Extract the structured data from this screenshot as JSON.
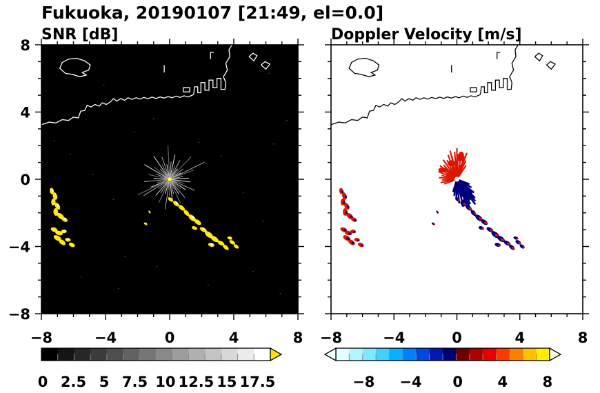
{
  "title": "Fukuoka, 20190107 [21:49, el=0.0]",
  "colors": {
    "echo_yellow": "#ffe818",
    "vel_red": "#dd1500",
    "vel_navy": "#00007d",
    "frame": "#000000"
  },
  "panels": [
    {
      "id": "snr",
      "subtitle": "SNR [dB]",
      "bg": "#000000",
      "coast_color": "#ffffff",
      "x_ticks": [
        {
          "v": -8,
          "label": "−8"
        },
        {
          "v": -4,
          "label": "−4"
        },
        {
          "v": 0,
          "label": "0"
        },
        {
          "v": 4,
          "label": "4"
        },
        {
          "v": 8,
          "label": "8"
        }
      ],
      "y_ticks": [
        {
          "v": 8,
          "label": "8"
        },
        {
          "v": 4,
          "label": "4"
        },
        {
          "v": 0,
          "label": "0"
        },
        {
          "v": -4,
          "label": "−4"
        },
        {
          "v": -8,
          "label": "−8"
        }
      ],
      "colorbar": {
        "segments": [
          "#000000",
          "#141414",
          "#272727",
          "#3b3b3b",
          "#4e4e4e",
          "#626262",
          "#767676",
          "#898989",
          "#9d9d9d",
          "#b0b0b0",
          "#c4c4c4",
          "#d8d8d8",
          "#ebebeb",
          "#ffffff"
        ],
        "labels": [
          {
            "f": 0.006,
            "text": "0"
          },
          {
            "f": 0.14,
            "text": "2.5"
          },
          {
            "f": 0.274,
            "text": "5"
          },
          {
            "f": 0.408,
            "text": "7.5"
          },
          {
            "f": 0.542,
            "text": "10"
          },
          {
            "f": 0.676,
            "text": "12.5"
          },
          {
            "f": 0.81,
            "text": "15"
          },
          {
            "f": 0.944,
            "text": "17.5"
          }
        ],
        "arrow_right_color": "#ffe400"
      }
    },
    {
      "id": "vel",
      "subtitle": "Doppler Velocity [m/s]",
      "bg": "#ffffff",
      "coast_color": "#000000",
      "x_ticks": [
        {
          "v": -8,
          "label": "−8"
        },
        {
          "v": -4,
          "label": "−4"
        },
        {
          "v": 0,
          "label": "0"
        },
        {
          "v": 4,
          "label": "4"
        },
        {
          "v": 8,
          "label": "8"
        }
      ],
      "y_ticks": [],
      "colorbar": {
        "segments": [
          "#e4ffff",
          "#b4f6ff",
          "#80e8ff",
          "#44d0ff",
          "#08b0ff",
          "#0080ff",
          "#0048e0",
          "#0018b0",
          "#000070",
          "#700000",
          "#b00000",
          "#e80000",
          "#ff3800",
          "#ff8000",
          "#ffc000",
          "#ffee00"
        ],
        "labels": [
          {
            "f": 0.13,
            "text": "−8"
          },
          {
            "f": 0.35,
            "text": "−4"
          },
          {
            "f": 0.57,
            "text": "0"
          },
          {
            "f": 0.78,
            "text": "4"
          },
          {
            "f": 0.99,
            "text": "8"
          }
        ],
        "arrow_left_color": "#f4ffff",
        "arrow_right_color": "#ffffe8"
      }
    }
  ],
  "geometry": {
    "xlim": [
      -8,
      8
    ],
    "ylim": [
      -8,
      8
    ],
    "coast_main": [
      [
        -8,
        3.25
      ],
      [
        -7.5,
        3.4
      ],
      [
        -7.1,
        3.35
      ],
      [
        -6.7,
        3.55
      ],
      [
        -6.3,
        3.5
      ],
      [
        -6.0,
        3.7
      ],
      [
        -5.7,
        3.65
      ],
      [
        -5.55,
        4.05
      ],
      [
        -5.3,
        4.1
      ],
      [
        -5.15,
        4.4
      ],
      [
        -4.9,
        4.3
      ],
      [
        -4.65,
        4.45
      ],
      [
        -4.4,
        4.35
      ],
      [
        -4.2,
        4.55
      ],
      [
        -3.95,
        4.45
      ],
      [
        -3.7,
        4.6
      ],
      [
        -3.5,
        4.8
      ],
      [
        -3.3,
        4.65
      ],
      [
        -3.05,
        4.8
      ],
      [
        -2.8,
        4.7
      ],
      [
        -2.6,
        4.85
      ],
      [
        -2.35,
        4.75
      ],
      [
        -2.1,
        4.85
      ],
      [
        -1.85,
        4.77
      ],
      [
        -1.6,
        4.87
      ],
      [
        -1.35,
        4.79
      ],
      [
        -1.1,
        4.89
      ],
      [
        -0.85,
        4.81
      ],
      [
        -0.6,
        4.9
      ],
      [
        -0.35,
        4.83
      ],
      [
        -0.1,
        4.92
      ],
      [
        0.15,
        4.85
      ],
      [
        0.4,
        4.95
      ],
      [
        0.65,
        4.87
      ],
      [
        0.9,
        4.97
      ],
      [
        1.15,
        4.9
      ],
      [
        1.4,
        5.0
      ],
      [
        1.5,
        5.05
      ]
    ],
    "harbor": [
      [
        1.5,
        5.05
      ],
      [
        1.55,
        5.5
      ],
      [
        1.75,
        5.5
      ],
      [
        1.75,
        5.15
      ],
      [
        1.95,
        5.15
      ],
      [
        1.95,
        5.75
      ],
      [
        2.2,
        5.75
      ],
      [
        2.2,
        5.3
      ],
      [
        2.45,
        5.3
      ],
      [
        2.45,
        5.9
      ],
      [
        2.7,
        5.9
      ],
      [
        2.7,
        5.45
      ],
      [
        2.95,
        5.45
      ],
      [
        2.95,
        6.0
      ],
      [
        3.2,
        6.0
      ],
      [
        3.2,
        5.35
      ],
      [
        3.45,
        5.35
      ],
      [
        3.5,
        5.75
      ],
      [
        3.35,
        6.1
      ],
      [
        3.6,
        6.5
      ],
      [
        3.5,
        6.9
      ],
      [
        3.75,
        7.3
      ],
      [
        3.7,
        7.7
      ],
      [
        3.95,
        8.1
      ]
    ],
    "island": [
      [
        -6.85,
        6.6
      ],
      [
        -6.7,
        6.95
      ],
      [
        -6.3,
        7.15
      ],
      [
        -5.8,
        7.2
      ],
      [
        -5.3,
        7.05
      ],
      [
        -4.95,
        6.8
      ],
      [
        -5.05,
        6.5
      ],
      [
        -5.45,
        6.35
      ],
      [
        -5.2,
        6.2
      ],
      [
        -5.6,
        6.1
      ],
      [
        -6.1,
        6.25
      ],
      [
        -6.5,
        6.3
      ],
      [
        -6.85,
        6.6
      ]
    ],
    "fragments": [
      [
        [
          0.85,
          5.2
        ],
        [
          1.25,
          5.2
        ],
        [
          1.25,
          5.45
        ],
        [
          0.85,
          5.45
        ],
        [
          0.85,
          5.2
        ]
      ],
      [
        [
          -0.34,
          6.35
        ],
        [
          -0.34,
          6.8
        ]
      ],
      [
        [
          2.55,
          7.15
        ],
        [
          2.55,
          7.55
        ],
        [
          2.75,
          7.55
        ]
      ],
      [
        [
          4.95,
          7.3
        ],
        [
          5.2,
          7.5
        ],
        [
          5.45,
          7.35
        ],
        [
          5.25,
          7.05
        ],
        [
          4.95,
          7.3
        ]
      ],
      [
        [
          5.7,
          6.8
        ],
        [
          5.95,
          7.0
        ],
        [
          6.25,
          6.85
        ],
        [
          6.0,
          6.55
        ],
        [
          5.7,
          6.8
        ]
      ]
    ],
    "snr_streaks": [
      [
        3,
        1.2
      ],
      [
        11,
        0.85
      ],
      [
        20,
        1.6
      ],
      [
        28,
        0.8
      ],
      [
        36,
        1.05
      ],
      [
        45,
        1.9
      ],
      [
        52,
        0.8
      ],
      [
        60,
        1.3
      ],
      [
        68,
        0.9
      ],
      [
        77,
        1.5
      ],
      [
        85,
        1.05
      ],
      [
        93,
        2.0
      ],
      [
        101,
        0.9
      ],
      [
        110,
        1.4
      ],
      [
        118,
        1.0
      ],
      [
        126,
        1.7
      ],
      [
        134,
        0.85
      ],
      [
        143,
        1.2
      ],
      [
        151,
        1.8
      ],
      [
        160,
        0.9
      ],
      [
        168,
        1.35
      ],
      [
        177,
        1.0
      ],
      [
        185,
        1.6
      ],
      [
        194,
        0.8
      ],
      [
        202,
        1.25
      ],
      [
        211,
        1.9
      ],
      [
        219,
        0.9
      ],
      [
        228,
        1.3
      ],
      [
        236,
        1.0
      ],
      [
        244,
        1.55
      ],
      [
        252,
        0.9
      ],
      [
        261,
        1.8
      ],
      [
        269,
        1.0
      ],
      [
        278,
        1.35
      ],
      [
        286,
        0.9
      ],
      [
        295,
        1.6
      ],
      [
        303,
        1.05
      ],
      [
        311,
        1.45
      ],
      [
        320,
        0.9
      ],
      [
        328,
        1.2
      ],
      [
        337,
        1.7
      ],
      [
        345,
        0.95
      ],
      [
        353,
        1.3
      ],
      [
        25,
        2.4
      ],
      [
        205,
        2.2
      ]
    ],
    "vel_red": [
      [
        55,
        1.0
      ],
      [
        63,
        1.25
      ],
      [
        71,
        1.45
      ],
      [
        79,
        1.6
      ],
      [
        87,
        1.5
      ],
      [
        95,
        1.65
      ],
      [
        103,
        1.4
      ],
      [
        111,
        1.55
      ],
      [
        119,
        1.3
      ],
      [
        127,
        1.45
      ],
      [
        135,
        1.2
      ],
      [
        143,
        1.35
      ],
      [
        151,
        1.05
      ],
      [
        159,
        1.25
      ],
      [
        167,
        1.0
      ],
      [
        175,
        1.15
      ],
      [
        183,
        0.95
      ],
      [
        191,
        1.05
      ],
      [
        199,
        0.85
      ],
      [
        60,
        0.7
      ],
      [
        76,
        0.9
      ],
      [
        92,
        0.8
      ],
      [
        108,
        0.9
      ],
      [
        124,
        0.75
      ],
      [
        140,
        0.85
      ],
      [
        156,
        0.7
      ],
      [
        172,
        0.8
      ],
      [
        188,
        0.65
      ],
      [
        90,
        1.85
      ],
      [
        104,
        1.75
      ],
      [
        68,
        1.7
      ]
    ],
    "vel_blue": [
      [
        252,
        0.8
      ],
      [
        260,
        1.0
      ],
      [
        268,
        1.2
      ],
      [
        276,
        1.45
      ],
      [
        284,
        1.65
      ],
      [
        292,
        1.85
      ],
      [
        300,
        1.7
      ],
      [
        308,
        1.9
      ],
      [
        316,
        1.6
      ],
      [
        324,
        1.35
      ],
      [
        332,
        1.05
      ],
      [
        340,
        0.85
      ],
      [
        256,
        0.6
      ],
      [
        272,
        0.9
      ],
      [
        288,
        1.1
      ],
      [
        304,
        1.3
      ],
      [
        320,
        1.0
      ],
      [
        336,
        0.7
      ],
      [
        296,
        2.0
      ],
      [
        312,
        1.75
      ]
    ],
    "vel_extras": [
      [
        0.75,
        -0.95,
        0.22,
        0.38,
        15,
        "n"
      ],
      [
        0.45,
        -1.4,
        0.16,
        0.25,
        20,
        "n"
      ],
      [
        -0.35,
        0.95,
        0.25,
        0.18,
        0,
        "r"
      ],
      [
        0.25,
        1.35,
        0.2,
        0.3,
        10,
        "r"
      ],
      [
        -0.9,
        0.55,
        0.28,
        0.15,
        0,
        "r"
      ]
    ],
    "echo_blobs": [
      [
        -7.35,
        -0.7,
        0.2,
        0.12,
        80,
        "r"
      ],
      [
        -7.15,
        -1.0,
        0.24,
        0.13,
        75,
        "r"
      ],
      [
        -7.25,
        -1.35,
        0.22,
        0.13,
        95,
        "r"
      ],
      [
        -7.0,
        -1.6,
        0.24,
        0.13,
        60,
        "r"
      ],
      [
        -7.1,
        -1.95,
        0.24,
        0.14,
        85,
        "r"
      ],
      [
        -6.8,
        -2.2,
        0.26,
        0.14,
        40,
        "r"
      ],
      [
        -6.55,
        -2.4,
        0.2,
        0.12,
        30,
        "r"
      ],
      [
        -7.2,
        -3.0,
        0.22,
        0.13,
        20,
        "r"
      ],
      [
        -6.9,
        -3.2,
        0.24,
        0.13,
        15,
        "r"
      ],
      [
        -6.6,
        -3.1,
        0.18,
        0.11,
        0,
        "r"
      ],
      [
        -7.0,
        -3.5,
        0.26,
        0.14,
        30,
        "r"
      ],
      [
        -6.7,
        -3.75,
        0.24,
        0.13,
        35,
        "r"
      ],
      [
        -6.35,
        -3.6,
        0.18,
        0.11,
        10,
        "r"
      ],
      [
        -6.1,
        -3.9,
        0.2,
        0.12,
        25,
        "r"
      ],
      [
        0.05,
        -1.2,
        0.18,
        0.1,
        40,
        "n"
      ],
      [
        0.4,
        -1.45,
        0.22,
        0.12,
        42,
        "n"
      ],
      [
        0.75,
        -1.7,
        0.24,
        0.12,
        38,
        "n"
      ],
      [
        1.05,
        -2.0,
        0.22,
        0.12,
        48,
        "n"
      ],
      [
        1.4,
        -2.3,
        0.28,
        0.14,
        40,
        "n"
      ],
      [
        1.75,
        -2.55,
        0.24,
        0.13,
        35,
        "n"
      ],
      [
        1.55,
        -2.9,
        0.18,
        0.1,
        20,
        "n"
      ],
      [
        2.1,
        -3.0,
        0.24,
        0.12,
        30,
        "n"
      ],
      [
        2.45,
        -3.3,
        0.3,
        0.15,
        38,
        "n"
      ],
      [
        2.8,
        -3.55,
        0.28,
        0.14,
        35,
        "n"
      ],
      [
        2.6,
        -3.9,
        0.2,
        0.11,
        15,
        "n"
      ],
      [
        3.2,
        -3.8,
        0.24,
        0.12,
        30,
        "n"
      ],
      [
        3.5,
        -4.05,
        0.22,
        0.11,
        40,
        "n"
      ],
      [
        3.75,
        -3.5,
        0.16,
        0.09,
        20,
        "n"
      ],
      [
        3.9,
        -3.75,
        0.2,
        0.11,
        30,
        "n"
      ],
      [
        4.15,
        -4.0,
        0.18,
        0.1,
        35,
        "n"
      ],
      [
        -1.5,
        -2.65,
        0.12,
        0.06,
        30,
        "n"
      ],
      [
        -1.25,
        -1.95,
        0.1,
        0.05,
        60,
        "n"
      ]
    ],
    "noise_dots": [
      [
        -6.2,
        1.5
      ],
      [
        -4.8,
        0.3
      ],
      [
        -3.5,
        -1.2
      ],
      [
        -2.2,
        2.8
      ],
      [
        -1.0,
        3.6
      ],
      [
        1.8,
        2.2
      ],
      [
        3.2,
        1.4
      ],
      [
        4.6,
        -0.8
      ],
      [
        5.8,
        -2.5
      ],
      [
        6.5,
        2.1
      ],
      [
        -5.5,
        -5.8
      ],
      [
        -3.2,
        -6.5
      ],
      [
        -0.8,
        -5.2
      ],
      [
        2.4,
        -6.3
      ],
      [
        5.2,
        -5.5
      ],
      [
        6.9,
        -6.8
      ],
      [
        -7.2,
        2.3
      ],
      [
        7.3,
        3.5
      ],
      [
        -2.8,
        -4.6
      ],
      [
        2.3,
        0.95
      ],
      [
        -4.1,
        5.6
      ],
      [
        6.2,
        6.3
      ]
    ]
  },
  "chart_data": [
    {
      "type": "heatmap",
      "title": "SNR [dB]",
      "site": "Fukuoka",
      "date": "20190107",
      "time": "21:49",
      "elevation_deg": 0.0,
      "xlim": [
        -8,
        8
      ],
      "ylim": [
        -8,
        8
      ],
      "x_ticks": [
        -8,
        -4,
        0,
        4,
        8
      ],
      "y_ticks": [
        -8,
        -4,
        0,
        4,
        8
      ],
      "colorbar_ticks": [
        0,
        2.5,
        5,
        7.5,
        10,
        12.5,
        15,
        17.5
      ],
      "colorbar_range": [
        0,
        17.5
      ],
      "colormap": "black-to-white grayscale with yellow over-range arrow",
      "grid": false,
      "features": [
        {
          "label": "radar site",
          "x": 0,
          "y": 0
        },
        {
          "label": "ground clutter spokes radiating from radar",
          "center": [
            0,
            0
          ],
          "max_radius": 2.4,
          "snr_db": "4-12"
        },
        {
          "label": "strong echo cluster west",
          "x_range": [
            -7.4,
            -6.5
          ],
          "y_range": [
            -2.5,
            -0.7
          ],
          "snr_db": ">17.5"
        },
        {
          "label": "strong echo cluster west-southwest",
          "x_range": [
            -7.3,
            -5.9
          ],
          "y_range": [
            -4.1,
            -2.9
          ],
          "snr_db": ">17.5"
        },
        {
          "label": "strong echo band running southeast from radar",
          "from": [
            0.0,
            -1.2
          ],
          "to": [
            4.2,
            -4.1
          ],
          "snr_db": ">17.5"
        },
        {
          "label": "coastline with harbor structures and offshore island",
          "region": "upper half of domain"
        }
      ]
    },
    {
      "type": "heatmap",
      "title": "Doppler Velocity [m/s]",
      "xlim": [
        -8,
        8
      ],
      "ylim": [
        -8,
        8
      ],
      "x_ticks": [
        -8,
        -4,
        0,
        4,
        8
      ],
      "y_ticks": [
        -8,
        -4,
        0,
        4,
        8
      ],
      "colorbar_ticks": [
        -8,
        -4,
        0,
        4,
        8
      ],
      "colormap": "diverging cyan-blue-navy (negative) to dark red-red-orange-yellow (positive) with under/over arrows",
      "grid": false,
      "features": [
        {
          "label": "positive (red) velocity fan northwest/above radar",
          "velocity_ms": "+2 to +6"
        },
        {
          "label": "negative (navy) velocity fan southeast/below-right of radar",
          "velocity_ms": "-2 to -6"
        },
        {
          "label": "mixed-sign echoes west",
          "x_range": [
            -7.4,
            -5.9
          ],
          "y_range": [
            -4.1,
            -0.7
          ]
        },
        {
          "label": "mixed-sign echo band southeast, navy-dominant with red specks",
          "from": [
            0.0,
            -1.2
          ],
          "to": [
            4.2,
            -4.1
          ]
        }
      ]
    }
  ]
}
